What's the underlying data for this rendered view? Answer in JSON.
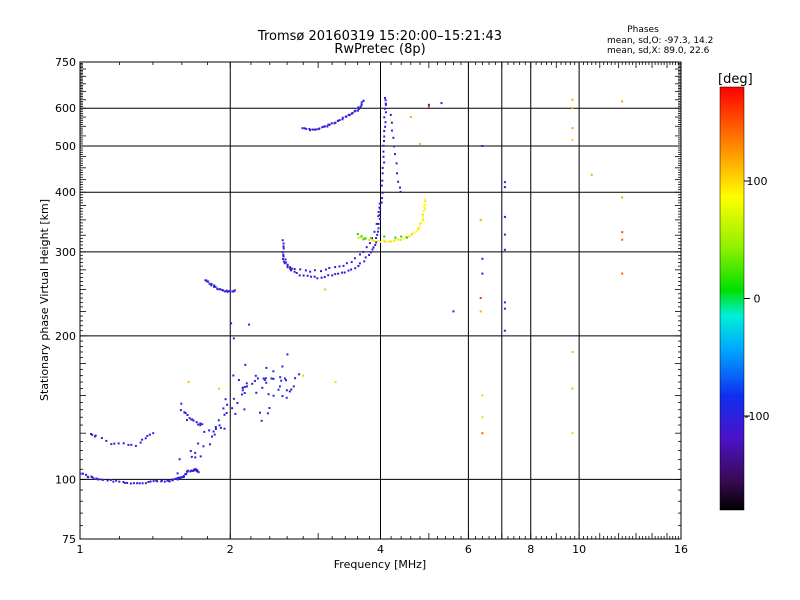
{
  "header": {
    "title_line1": "Tromsø 20160319 15:20:00–15:21:43",
    "title_line2": "RwPretec (8p)",
    "stats_title": "Phases",
    "stats_line1": "mean, sd,O: -97.3, 14.2",
    "stats_line2": "mean, sd,X:  89.0, 22.6"
  },
  "colorbar": {
    "label": "[deg]",
    "ticks": [
      {
        "value": 100,
        "label": "100"
      },
      {
        "value": 0,
        "label": "0"
      },
      {
        "value": -100,
        "label": "-100"
      }
    ],
    "range": [
      -180,
      180
    ]
  },
  "chart_data": {
    "type": "scatter",
    "title": "Tromsø 20160319 15:20:00–15:21:43",
    "subtitle": "RwPretec (8p)",
    "xlabel": "Frequency [MHz]",
    "ylabel": "Stationary phase Virtual Height [km]",
    "xscale": "log",
    "yscale": "log",
    "xlim": [
      1,
      16
    ],
    "ylim": [
      75,
      750
    ],
    "xticks": [
      {
        "value": 1,
        "label": "1"
      },
      {
        "value": 2,
        "label": "2"
      },
      {
        "value": 4,
        "label": "4"
      },
      {
        "value": 6,
        "label": "6"
      },
      {
        "value": 8,
        "label": "8"
      },
      {
        "value": 10,
        "label": "10"
      },
      {
        "value": 16,
        "label": "16"
      }
    ],
    "xgrid": [
      2,
      4,
      6,
      7,
      8,
      10
    ],
    "yticks": [
      {
        "value": 75,
        "label": "75"
      },
      {
        "value": 100,
        "label": "100"
      },
      {
        "value": 200,
        "label": "200"
      },
      {
        "value": 300,
        "label": "300"
      },
      {
        "value": 400,
        "label": "400"
      },
      {
        "value": 500,
        "label": "500"
      },
      {
        "value": 600,
        "label": "600"
      },
      {
        "value": 750,
        "label": "750"
      }
    ],
    "ygrid": [
      100,
      200,
      300,
      400,
      500,
      600
    ],
    "color_scale": "phase [deg], -180 to 180",
    "traces": [
      {
        "name": "E-layer base",
        "phase": -105,
        "jitter": 0.005,
        "n": 6,
        "points": [
          [
            1.0,
            103
          ],
          [
            1.05,
            101
          ],
          [
            1.1,
            100
          ],
          [
            1.2,
            99
          ],
          [
            1.3,
            98
          ],
          [
            1.4,
            99
          ],
          [
            1.5,
            99
          ],
          [
            1.55,
            100
          ],
          [
            1.6,
            101
          ],
          [
            1.62,
            102
          ],
          [
            1.65,
            104
          ],
          [
            1.7,
            105
          ],
          [
            1.72,
            104
          ]
        ]
      },
      {
        "name": "Es cluster low",
        "phase": -100,
        "jitter": 0.03,
        "n": 3,
        "points": [
          [
            1.58,
            105
          ],
          [
            1.65,
            112
          ],
          [
            1.72,
            115
          ],
          [
            1.8,
            120
          ],
          [
            1.85,
            126
          ],
          [
            1.9,
            130
          ],
          [
            1.95,
            135
          ],
          [
            2.0,
            140
          ],
          [
            2.05,
            148
          ],
          [
            2.1,
            155
          ],
          [
            2.15,
            158
          ],
          [
            2.2,
            160
          ],
          [
            2.3,
            162
          ],
          [
            2.4,
            165
          ],
          [
            2.5,
            160
          ],
          [
            2.6,
            158
          ],
          [
            2.7,
            155
          ],
          [
            2.75,
            162
          ]
        ]
      },
      {
        "name": "Es spread",
        "phase": -95,
        "jitter": 0.06,
        "n": 2,
        "points": [
          [
            1.9,
            125
          ],
          [
            2.0,
            132
          ],
          [
            2.05,
            165
          ],
          [
            2.1,
            170
          ],
          [
            2.2,
            150
          ],
          [
            2.3,
            140
          ],
          [
            2.4,
            150
          ],
          [
            2.5,
            170
          ],
          [
            2.55,
            180
          ],
          [
            2.6,
            150
          ],
          [
            2.05,
            190
          ],
          [
            2.1,
            210
          ],
          [
            2.3,
            145
          ],
          [
            2.7,
            145
          ],
          [
            1.8,
            130
          ],
          [
            1.6,
            140
          ]
        ]
      },
      {
        "name": "E-layer short",
        "phase": -100,
        "jitter": 0.005,
        "n": 3,
        "points": [
          [
            1.05,
            124
          ],
          [
            1.08,
            123
          ],
          [
            1.15,
            119
          ],
          [
            1.22,
            119
          ],
          [
            1.3,
            118
          ],
          [
            1.35,
            122
          ],
          [
            1.4,
            125
          ]
        ]
      },
      {
        "name": "Es segment 1.6",
        "phase": -105,
        "jitter": 0.005,
        "n": 3,
        "points": [
          [
            1.6,
            140
          ],
          [
            1.64,
            136
          ],
          [
            1.68,
            133
          ],
          [
            1.72,
            131
          ],
          [
            1.76,
            130
          ]
        ]
      },
      {
        "name": "F1 cusp",
        "phase": -105,
        "jitter": 0.004,
        "n": 4,
        "points": [
          [
            1.78,
            262
          ],
          [
            1.82,
            258
          ],
          [
            1.86,
            253
          ],
          [
            1.9,
            250
          ],
          [
            1.95,
            248
          ],
          [
            2.0,
            248
          ],
          [
            2.05,
            249
          ]
        ]
      },
      {
        "name": "F-trace O",
        "phase": -105,
        "jitter": 0.004,
        "n": 4,
        "points": [
          [
            2.55,
            318
          ],
          [
            2.55,
            300
          ],
          [
            2.58,
            285
          ],
          [
            2.65,
            274
          ],
          [
            2.8,
            267
          ],
          [
            3.0,
            265
          ],
          [
            3.2,
            268
          ],
          [
            3.4,
            272
          ],
          [
            3.6,
            280
          ],
          [
            3.8,
            295
          ],
          [
            3.9,
            310
          ],
          [
            3.95,
            330
          ],
          [
            4.0,
            360
          ],
          [
            4.03,
            400
          ],
          [
            4.05,
            450
          ],
          [
            4.07,
            500
          ],
          [
            4.08,
            550
          ],
          [
            4.09,
            600
          ],
          [
            4.1,
            630
          ]
        ]
      },
      {
        "name": "F-trace second",
        "phase": -105,
        "jitter": 0.004,
        "n": 3,
        "points": [
          [
            2.55,
            290
          ],
          [
            2.6,
            280
          ],
          [
            2.7,
            276
          ],
          [
            2.9,
            273
          ],
          [
            3.1,
            275
          ],
          [
            3.3,
            279
          ],
          [
            3.5,
            286
          ],
          [
            3.7,
            300
          ],
          [
            3.85,
            320
          ],
          [
            3.95,
            355
          ],
          [
            4.0,
            380
          ]
        ]
      },
      {
        "name": "F-trace X",
        "phase": 95,
        "jitter": 0.004,
        "n": 4,
        "points": [
          [
            3.6,
            322
          ],
          [
            3.8,
            318
          ],
          [
            4.0,
            316
          ],
          [
            4.2,
            315
          ],
          [
            4.4,
            318
          ],
          [
            4.6,
            325
          ],
          [
            4.75,
            335
          ],
          [
            4.85,
            350
          ],
          [
            4.9,
            370
          ],
          [
            4.92,
            385
          ]
        ]
      },
      {
        "name": "F-trace X mixed",
        "phase": 10,
        "jitter": 0.008,
        "n": 2,
        "points": [
          [
            3.6,
            325
          ],
          [
            3.7,
            320
          ],
          [
            3.8,
            322
          ],
          [
            4.3,
            320
          ],
          [
            4.5,
            322
          ]
        ]
      },
      {
        "name": "Upper trace",
        "phase": -105,
        "jitter": 0.004,
        "n": 4,
        "points": [
          [
            2.8,
            545
          ],
          [
            2.9,
            540
          ],
          [
            3.0,
            543
          ],
          [
            3.1,
            548
          ],
          [
            3.2,
            556
          ],
          [
            3.3,
            566
          ],
          [
            3.4,
            575
          ],
          [
            3.5,
            585
          ],
          [
            3.6,
            595
          ],
          [
            3.65,
            610
          ],
          [
            3.7,
            622
          ]
        ]
      },
      {
        "name": "High-frequency trace",
        "phase": -110,
        "jitter": 0.003,
        "n": 2,
        "points": [
          [
            4.2,
            580
          ],
          [
            4.22,
            540
          ],
          [
            4.25,
            500
          ],
          [
            4.3,
            460
          ],
          [
            4.35,
            420
          ],
          [
            4.4,
            400
          ]
        ]
      },
      {
        "name": "Scattered O",
        "phase": -100,
        "jitter": 0.0,
        "n": 1,
        "points": [
          [
            7.1,
            420
          ],
          [
            7.1,
            410
          ],
          [
            7.1,
            355
          ],
          [
            7.1,
            326
          ],
          [
            7.1,
            303
          ],
          [
            7.1,
            235
          ],
          [
            7.1,
            228
          ],
          [
            7.1,
            205
          ],
          [
            6.4,
            500
          ],
          [
            6.4,
            290
          ],
          [
            5.6,
            225
          ],
          [
            5.0,
            610
          ],
          [
            5.3,
            615
          ],
          [
            6.4,
            270
          ]
        ]
      },
      {
        "name": "Scattered X",
        "phase": 110,
        "jitter": 0.0,
        "n": 1,
        "points": [
          [
            9.7,
            625
          ],
          [
            9.7,
            600
          ],
          [
            9.7,
            545
          ],
          [
            9.7,
            515
          ],
          [
            10.6,
            435
          ],
          [
            12.2,
            620
          ],
          [
            6.35,
            350
          ],
          [
            6.35,
            225
          ],
          [
            6.4,
            150
          ],
          [
            6.4,
            135
          ],
          [
            9.7,
            185
          ],
          [
            9.7,
            155
          ],
          [
            9.7,
            125
          ],
          [
            3.25,
            160
          ],
          [
            1.65,
            160
          ],
          [
            1.9,
            155
          ],
          [
            4.6,
            575
          ],
          [
            4.8,
            505
          ]
        ]
      },
      {
        "name": "Scattered red",
        "phase": 155,
        "jitter": 0.0,
        "n": 1,
        "points": [
          [
            12.2,
            330
          ],
          [
            12.2,
            318
          ],
          [
            12.2,
            270
          ],
          [
            6.35,
            240
          ],
          [
            6.4,
            125
          ],
          [
            5.0,
            605
          ]
        ]
      },
      {
        "name": "Scattered green",
        "phase": 45,
        "jitter": 0.0,
        "n": 1,
        "points": [
          [
            12.2,
            390
          ],
          [
            2.8,
            165
          ],
          [
            3.1,
            250
          ]
        ]
      }
    ]
  }
}
